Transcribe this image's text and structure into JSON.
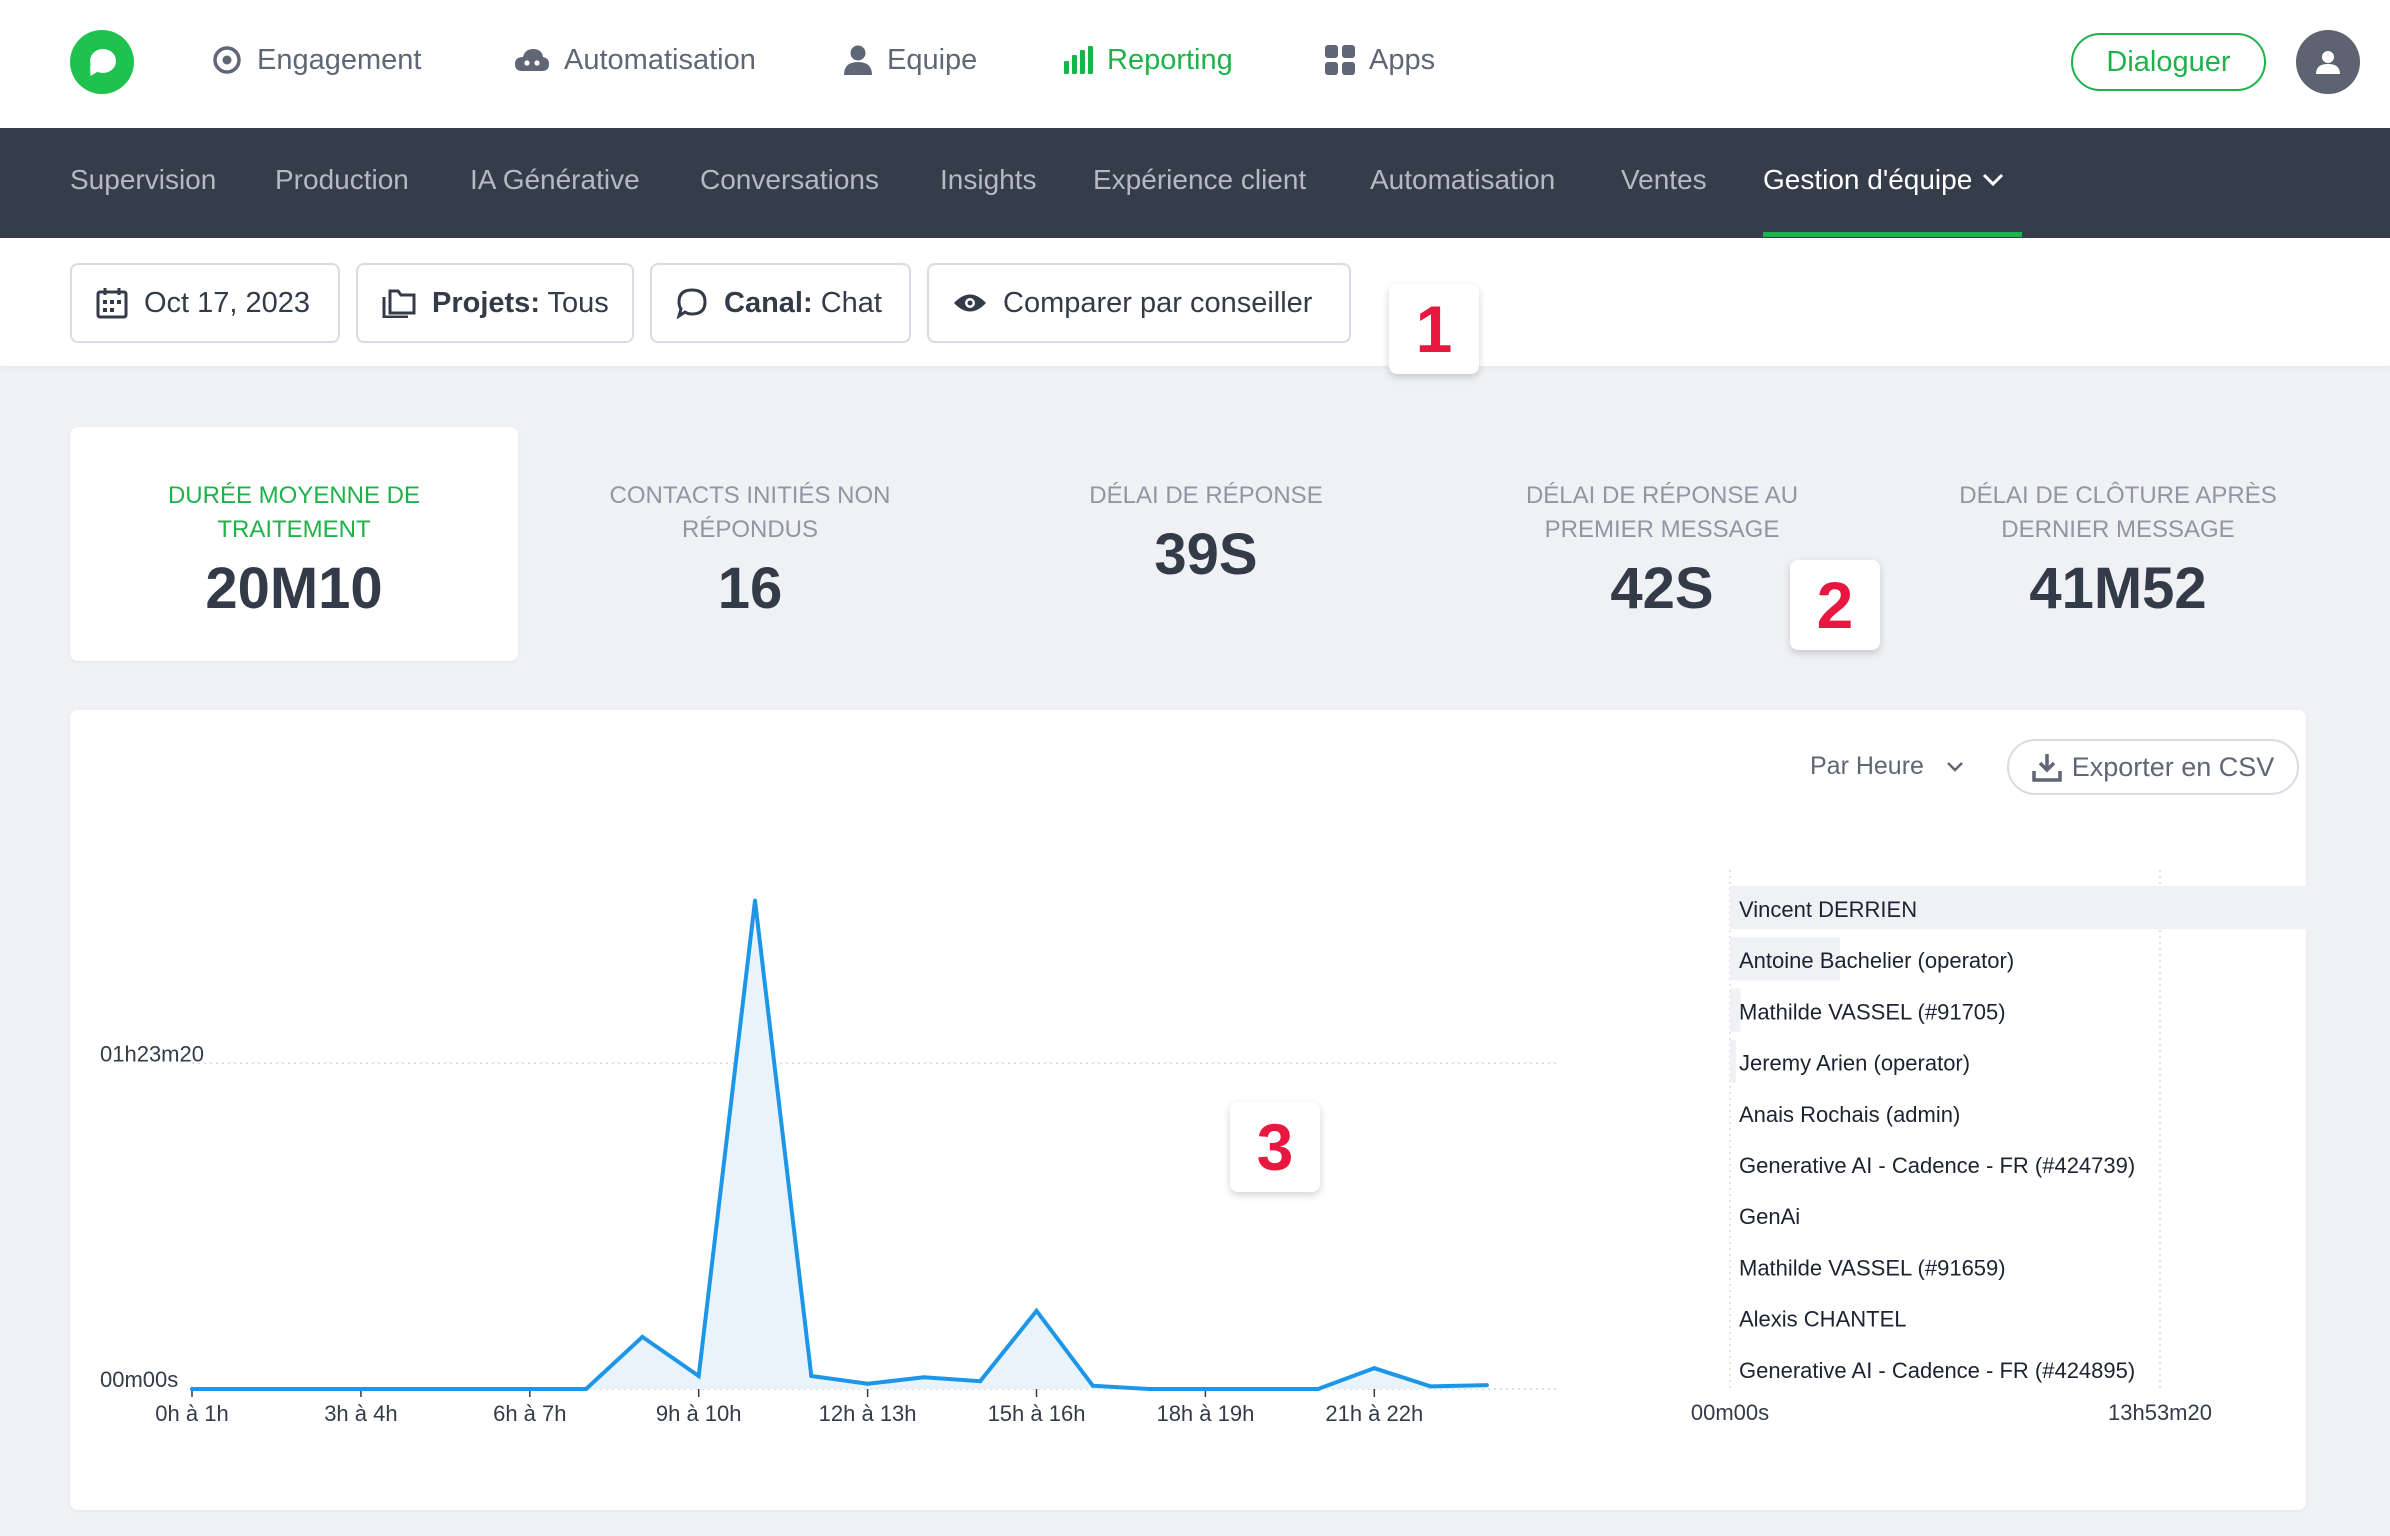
{
  "topnav": {
    "items": [
      {
        "label": "Engagement",
        "icon": "target-icon"
      },
      {
        "label": "Automatisation",
        "icon": "cloud-bot-icon"
      },
      {
        "label": "Equipe",
        "icon": "person-icon"
      },
      {
        "label": "Reporting",
        "icon": "bar-chart-icon",
        "active": true
      },
      {
        "label": "Apps",
        "icon": "grid-icon"
      }
    ],
    "cta_label": "Dialoguer",
    "accent_color": "#1fb24a"
  },
  "subnav": {
    "items": [
      "Supervision",
      "Production",
      "IA Générative",
      "Conversations",
      "Insights",
      "Expérience client",
      "Automatisation",
      "Ventes"
    ],
    "active_label": "Gestion d'équipe"
  },
  "filters": {
    "date": "Oct 17, 2023",
    "projects_key": "Projets:",
    "projects_value": "Tous",
    "channel_key": "Canal:",
    "channel_value": "Chat",
    "compare_label": "Comparer par conseiller"
  },
  "badges": [
    "1",
    "2",
    "3"
  ],
  "kpis": [
    {
      "label": "DURÉE MOYENNE DE TRAITEMENT",
      "value": "20M10"
    },
    {
      "label": "CONTACTS INITIÉS NON RÉPONDUS",
      "value": "16"
    },
    {
      "label": "DÉLAI DE RÉPONSE",
      "value": "39S"
    },
    {
      "label": "DÉLAI DE RÉPONSE AU PREMIER MESSAGE",
      "value": "42S"
    },
    {
      "label": "DÉLAI DE CLÔTURE APRÈS DERNIER MESSAGE",
      "value": "41M52"
    }
  ],
  "chart_controls": {
    "granularity": "Par Heure",
    "export_label": "Exporter en CSV"
  },
  "chart_data": [
    {
      "type": "area",
      "y_ticks": [
        "00m00s",
        "01h23m20"
      ],
      "y_tick_seconds": [
        0,
        5000
      ],
      "ylim_seconds": [
        0,
        8000
      ],
      "x_tick_labels": [
        "0h à 1h",
        "3h à 4h",
        "6h à 7h",
        "9h à 10h",
        "12h à 13h",
        "15h à 16h",
        "18h à 19h",
        "21h à 22h"
      ],
      "x_tick_hours": [
        0,
        3,
        6,
        9,
        12,
        15,
        18,
        21
      ],
      "x": [
        0,
        1,
        2,
        3,
        4,
        5,
        6,
        7,
        8,
        9,
        10,
        11,
        12,
        13,
        14,
        15,
        16,
        17,
        18,
        19,
        20,
        21,
        22,
        23
      ],
      "values_seconds": [
        0,
        0,
        0,
        0,
        0,
        0,
        0,
        0,
        800,
        200,
        7500,
        200,
        80,
        180,
        120,
        1200,
        50,
        0,
        0,
        0,
        0,
        320,
        40,
        60
      ],
      "grid": true,
      "color": "#1e96e8"
    },
    {
      "type": "bar",
      "orientation": "horizontal",
      "categories": [
        "Vincent DERRIEN",
        "Antoine Bachelier (operator)",
        "Mathilde VASSEL (#91705)",
        "Jeremy Arien (operator)",
        "Anais Rochais (admin)",
        "Generative AI - Cadence - FR (#424739)",
        "GenAi",
        "Mathilde VASSEL (#91659)",
        "Alexis CHANTEL",
        "Generative AI - Cadence - FR (#424895)"
      ],
      "values_seconds": [
        72000,
        12800,
        1200,
        700,
        0,
        0,
        0,
        0,
        0,
        0
      ],
      "x_ticks": [
        "00m00s",
        "13h53m20"
      ],
      "x_tick_seconds": [
        0,
        50000
      ],
      "bar_color": "#eff1f5"
    }
  ]
}
